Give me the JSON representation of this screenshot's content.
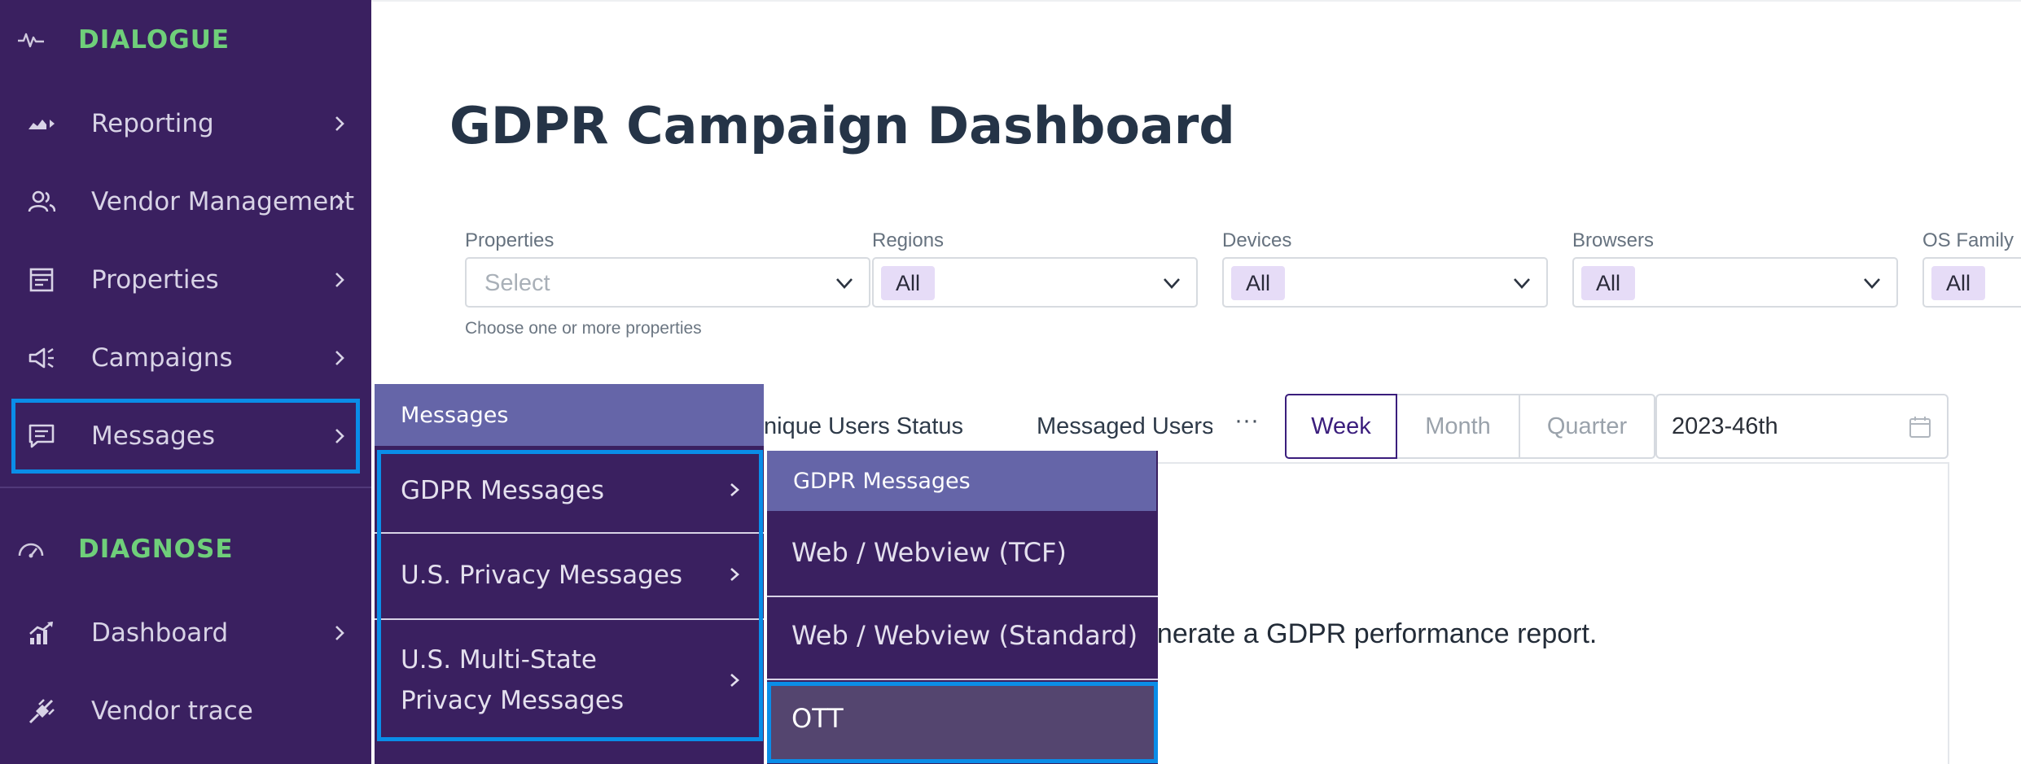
{
  "sidebar": {
    "sections": [
      {
        "label": "DIALOGUE",
        "icon": "activity-pulse-icon"
      },
      {
        "label": "DIAGNOSE",
        "icon": "gauge-icon"
      }
    ],
    "dialogue_items": [
      {
        "label": "Reporting",
        "icon": "chart-icon"
      },
      {
        "label": "Vendor Management",
        "icon": "users-icon"
      },
      {
        "label": "Properties",
        "icon": "property-icon"
      },
      {
        "label": "Campaigns",
        "icon": "megaphone-icon"
      },
      {
        "label": "Messages",
        "icon": "message-icon"
      }
    ],
    "diagnose_items": [
      {
        "label": "Dashboard",
        "icon": "trend-chart-icon"
      },
      {
        "label": "Vendor trace",
        "icon": "plug-icon"
      }
    ]
  },
  "main": {
    "title": "GDPR Campaign Dashboard",
    "filters": [
      {
        "label": "Properties",
        "placeholder": "Select",
        "helper": "Choose one or more properties"
      },
      {
        "label": "Regions",
        "value": "All"
      },
      {
        "label": "Devices",
        "value": "All"
      },
      {
        "label": "Browsers",
        "value": "All"
      },
      {
        "label": "OS Family",
        "value": "All"
      }
    ],
    "tabs": {
      "unique_users": "nique Users Status",
      "messaged_users": "Messaged Users",
      "more": "···"
    },
    "periods": [
      "Week",
      "Month",
      "Quarter"
    ],
    "selected_period": "Week",
    "date_value": "2023-46th",
    "report_message": "enerate a GDPR performance report."
  },
  "flyout_messages": {
    "header": "Messages",
    "items": [
      "GDPR Messages",
      "U.S. Privacy Messages",
      "U.S. Multi-State Privacy Messages"
    ]
  },
  "flyout_gdpr": {
    "header": "GDPR Messages",
    "items": [
      "Web / Webview (TCF)",
      "Web / Webview (Standard)",
      "OTT"
    ],
    "selected": "OTT"
  },
  "colors": {
    "sidebar_bg": "#3a2060",
    "section_label": "#6fcf7a",
    "flyout_header": "#6565a8",
    "focus_outline": "#0a8de8",
    "tag_bg": "#e6dcf7",
    "active_period": "#3a1d7c"
  }
}
